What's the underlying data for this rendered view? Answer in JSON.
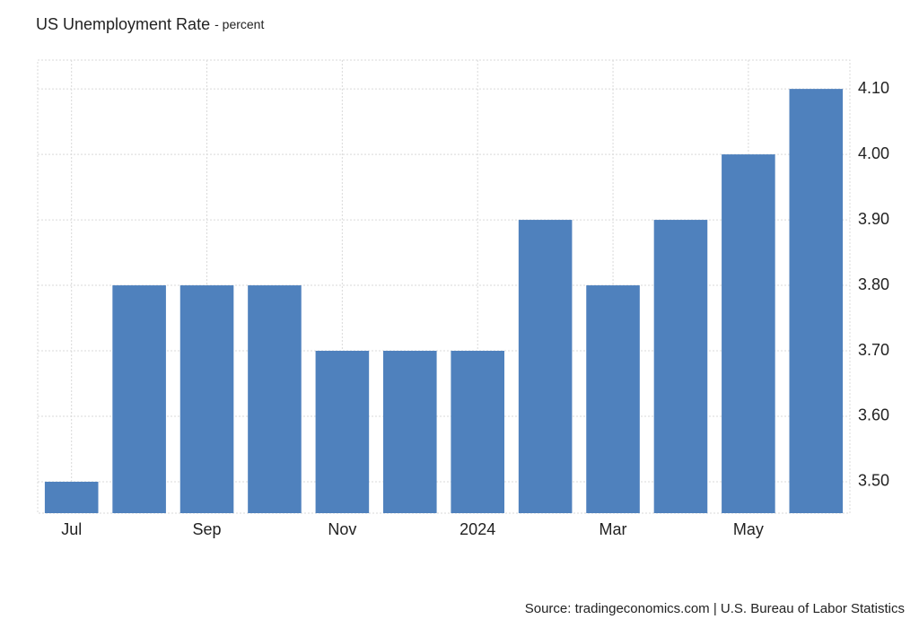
{
  "chart_data": {
    "type": "bar",
    "title": "US Unemployment Rate",
    "subtitle": "- percent",
    "source": "Source: tradingeconomics.com | U.S. Bureau of Labor Statistics",
    "categories": [
      "Jul",
      null,
      "Sep",
      null,
      "Nov",
      null,
      "2024",
      null,
      "Mar",
      null,
      "May",
      null
    ],
    "values": [
      3.5,
      3.8,
      3.8,
      3.8,
      3.7,
      3.7,
      3.7,
      3.9,
      3.8,
      3.9,
      4.0,
      4.1
    ],
    "color": "#4f81bd",
    "ylim": [
      3.452,
      4.144
    ],
    "yticks": [
      {
        "value": 3.5,
        "label": "3.50"
      },
      {
        "value": 3.6,
        "label": "3.60"
      },
      {
        "value": 3.7,
        "label": "3.70"
      },
      {
        "value": 3.8,
        "label": "3.80"
      },
      {
        "value": 3.9,
        "label": "3.90"
      },
      {
        "value": 4.0,
        "label": "4.00"
      },
      {
        "value": 4.1,
        "label": "4.10"
      }
    ],
    "grid": true
  }
}
